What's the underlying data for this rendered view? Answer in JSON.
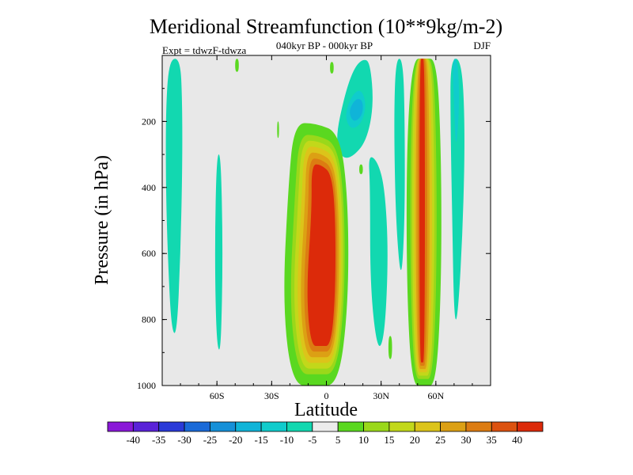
{
  "chart_data": {
    "type": "heatmap",
    "title": "Meridional Streamfunction (10**9kg/m-2)",
    "subtitle": "040kyr BP - 000kyr BP",
    "left_label": "Expt = tdwzF-tdwza",
    "right_label": "DJF",
    "xlabel": "Latitude",
    "ylabel": "Pressure (in hPa)",
    "xlim": [
      -90,
      90
    ],
    "ylim": [
      1000,
      0
    ],
    "x_ticks": [
      {
        "value": -60,
        "label": "60S"
      },
      {
        "value": -30,
        "label": "30S"
      },
      {
        "value": 0,
        "label": "0"
      },
      {
        "value": 30,
        "label": "30N"
      },
      {
        "value": 60,
        "label": "60N"
      }
    ],
    "y_ticks": [
      {
        "value": 200,
        "label": "200"
      },
      {
        "value": 400,
        "label": "400"
      },
      {
        "value": 600,
        "label": "600"
      },
      {
        "value": 800,
        "label": "800"
      },
      {
        "value": 1000,
        "label": "1000"
      }
    ],
    "background_color": "#e8e8e8",
    "colorbar": {
      "colors": [
        "#8a18d8",
        "#5a22d8",
        "#2a3ad8",
        "#1a6ad8",
        "#1690d8",
        "#10b4d8",
        "#10cccc",
        "#12d8b0",
        "#ececec",
        "#5ad820",
        "#9ad81a",
        "#c2d81a",
        "#dcc41a",
        "#dca014",
        "#dc7c12",
        "#dc5210",
        "#dc2a0a"
      ],
      "labels": [
        "-40",
        "-35",
        "-30",
        "-25",
        "-20",
        "-15",
        "-10",
        "-5",
        "5",
        "10",
        "15",
        "20",
        "25",
        "30",
        "35",
        "40"
      ]
    },
    "fields": [
      {
        "level": "-5",
        "kind": "blob",
        "pts": [
          [
            -86,
            10
          ],
          [
            -80,
            10
          ],
          [
            -79,
            150
          ],
          [
            -79,
            350
          ],
          [
            -80,
            600
          ],
          [
            -82,
            850
          ],
          [
            -85,
            830
          ],
          [
            -87,
            600
          ],
          [
            -88,
            400
          ],
          [
            -88,
            150
          ]
        ]
      },
      {
        "level": "-5",
        "kind": "blob",
        "pts": [
          [
            -60,
            300
          ],
          [
            -58,
            300
          ],
          [
            -57,
            500
          ],
          [
            -57,
            700
          ],
          [
            -58,
            900
          ],
          [
            -60,
            880
          ],
          [
            -61,
            700
          ],
          [
            -61,
            500
          ]
        ]
      },
      {
        "level": "5",
        "kind": "blob",
        "pts": [
          [
            -50,
            10
          ],
          [
            -48,
            10
          ],
          [
            -48,
            50
          ],
          [
            -50,
            50
          ]
        ]
      },
      {
        "level": "5",
        "kind": "blob",
        "pts": [
          [
            -27,
            200
          ],
          [
            -26,
            200
          ],
          [
            -26,
            250
          ],
          [
            -27,
            250
          ]
        ]
      },
      {
        "level": "5",
        "kind": "blob",
        "pts": [
          [
            2,
            20
          ],
          [
            4,
            20
          ],
          [
            4,
            55
          ],
          [
            2,
            55
          ]
        ]
      },
      {
        "level": "-5",
        "kind": "blob",
        "pts": [
          [
            5,
            250
          ],
          [
            10,
            120
          ],
          [
            15,
            40
          ],
          [
            20,
            10
          ],
          [
            24,
            20
          ],
          [
            26,
            150
          ],
          [
            22,
            260
          ],
          [
            14,
            310
          ],
          [
            8,
            310
          ]
        ]
      },
      {
        "level": "-10",
        "kind": "blob",
        "pts": [
          [
            10,
            180
          ],
          [
            14,
            120
          ],
          [
            19,
            100
          ],
          [
            22,
            150
          ],
          [
            19,
            210
          ],
          [
            13,
            225
          ]
        ]
      },
      {
        "level": "-15",
        "kind": "blob",
        "pts": [
          [
            12,
            170
          ],
          [
            16,
            130
          ],
          [
            20,
            135
          ],
          [
            20,
            180
          ],
          [
            15,
            205
          ]
        ]
      },
      {
        "level": "-5",
        "kind": "blob",
        "pts": [
          [
            23,
            300
          ],
          [
            28,
            320
          ],
          [
            32,
            400
          ],
          [
            34,
            600
          ],
          [
            32,
            850
          ],
          [
            28,
            900
          ],
          [
            24,
            700
          ],
          [
            24,
            400
          ]
        ]
      },
      {
        "level": "5",
        "kind": "blob",
        "pts": [
          [
            34,
            850
          ],
          [
            36,
            850
          ],
          [
            36,
            920
          ],
          [
            34,
            920
          ]
        ]
      },
      {
        "level": "5",
        "kind": "blob",
        "pts": [
          [
            18,
            330
          ],
          [
            20,
            330
          ],
          [
            20,
            360
          ],
          [
            18,
            360
          ]
        ]
      },
      {
        "level": "-5",
        "kind": "blob",
        "pts": [
          [
            38,
            10
          ],
          [
            42,
            10
          ],
          [
            43,
            200
          ],
          [
            43,
            500
          ],
          [
            41,
            700
          ],
          [
            38,
            500
          ],
          [
            37,
            200
          ]
        ]
      },
      {
        "level": "-5",
        "kind": "blob",
        "pts": [
          [
            68,
            10
          ],
          [
            74,
            10
          ],
          [
            76,
            200
          ],
          [
            75,
            500
          ],
          [
            72,
            800
          ],
          [
            70,
            800
          ],
          [
            69,
            500
          ],
          [
            68,
            200
          ]
        ]
      },
      {
        "level": "-10",
        "kind": "blob",
        "pts": [
          [
            69,
            10
          ],
          [
            72,
            10
          ],
          [
            73,
            150
          ],
          [
            71,
            300
          ],
          [
            70,
            150
          ]
        ]
      },
      {
        "level": "stack",
        "kind": "stack",
        "bins": [
          "5",
          "10",
          "15",
          "20",
          "25",
          "30",
          "35",
          "40"
        ],
        "x0": -6,
        "x1": 11,
        "top": [
          [
            -24,
            370
          ],
          [
            -12,
            225
          ],
          [
            -6,
            205
          ],
          [
            0,
            215
          ],
          [
            11,
            265
          ]
        ],
        "bot": [
          [
            -22,
            980
          ],
          [
            -10,
            1000
          ],
          [
            0,
            1000
          ],
          [
            10,
            960
          ]
        ],
        "rings": [
          {
            "x0": -6,
            "x1": 11,
            "top": [
              [
                -24,
                370
              ],
              [
                -12,
                225
              ],
              [
                -6,
                205
              ],
              [
                0,
                215
              ],
              [
                11,
                265
              ]
            ],
            "bot": [
              [
                -22,
                980
              ],
              [
                -10,
                1000
              ],
              [
                0,
                1000
              ],
              [
                10,
                960
              ]
            ]
          }
        ]
      }
    ],
    "plumes": [
      {
        "name": "equatorial-cell",
        "x_left": -24,
        "x_right": 12,
        "y_top": 205,
        "y_bottom": 1000,
        "core_left": -11,
        "core_right": 5,
        "core_top": 330,
        "core_bottom": 880
      },
      {
        "name": "nh-cell",
        "x_left": 44,
        "x_right": 63,
        "y_top": 10,
        "y_bottom": 1000,
        "core_left": 51,
        "core_right": 54,
        "core_top": 10,
        "core_bottom": 930
      }
    ]
  }
}
